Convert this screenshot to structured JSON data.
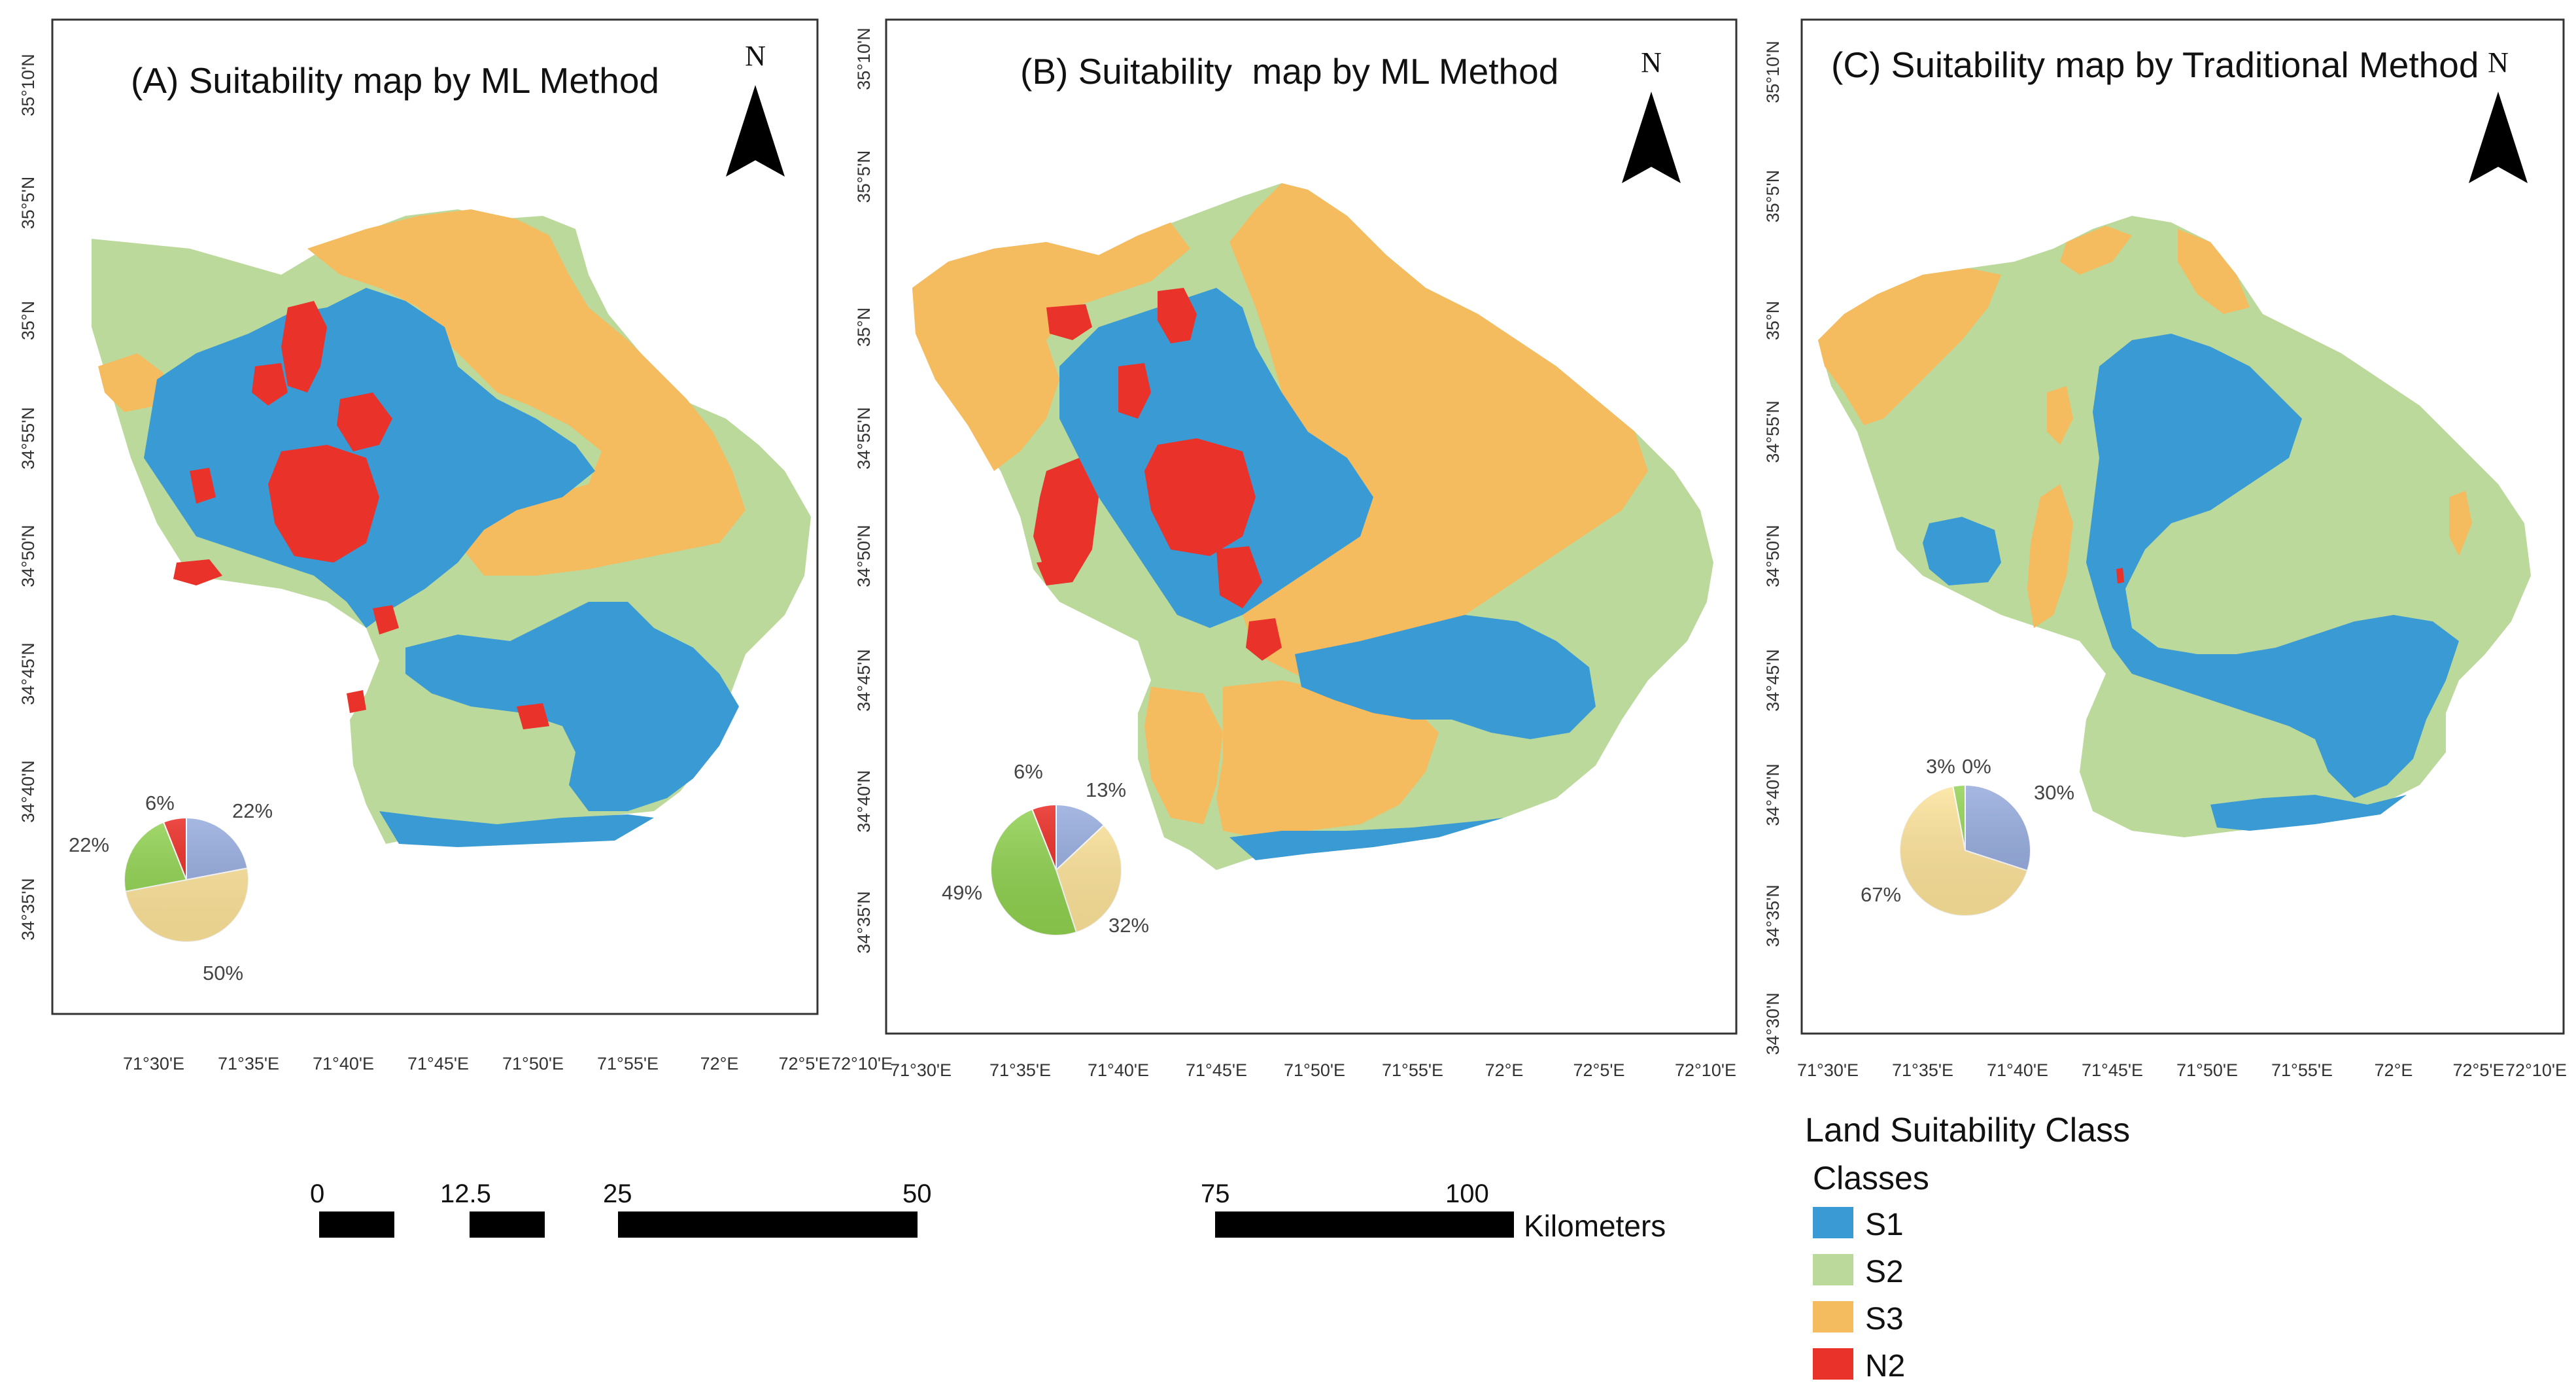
{
  "panels": [
    {
      "title": "(A) Suitability map by ML Method",
      "north": "N",
      "lat_labels": [
        "35°10'N",
        "35°5'N",
        "35°N",
        "34°55'N",
        "34°50'N",
        "34°45'N",
        "34°40'N",
        "34°35'N"
      ],
      "lon_labels": [
        "71°30'E",
        "71°35'E",
        "71°40'E",
        "71°45'E",
        "71°50'E",
        "71°55'E",
        "72°E",
        "72°5'E",
        "72°10'E"
      ],
      "pie": [
        {
          "cls": "S1",
          "pct": 22,
          "label": "22%"
        },
        {
          "cls": "S3",
          "pct": 50,
          "label": "50%"
        },
        {
          "cls": "S2",
          "pct": 22,
          "label": "22%"
        },
        {
          "cls": "N2",
          "pct": 6,
          "label": "6%"
        }
      ]
    },
    {
      "title": "(B) Suitability  map by ML Method",
      "north": "N",
      "lat_labels": [
        "35°10'N",
        "35°5'N",
        "35°N",
        "34°55'N",
        "34°50'N",
        "34°45'N",
        "34°40'N",
        "34°35'N"
      ],
      "lon_labels": [
        "71°30'E",
        "71°35'E",
        "71°40'E",
        "71°45'E",
        "71°50'E",
        "71°55'E",
        "72°E",
        "72°5'E",
        "72°10'E"
      ],
      "pie": [
        {
          "cls": "S1",
          "pct": 13,
          "label": "13%"
        },
        {
          "cls": "S3",
          "pct": 32,
          "label": "32%"
        },
        {
          "cls": "S2",
          "pct": 49,
          "label": "49%"
        },
        {
          "cls": "N2",
          "pct": 6,
          "label": "6%"
        }
      ]
    },
    {
      "title": "(C) Suitability map by Traditional Method",
      "north": "N",
      "lat_labels": [
        "35°10'N",
        "35°5'N",
        "35°N",
        "34°55'N",
        "34°50'N",
        "34°45'N",
        "34°40'N",
        "34°35'N",
        "34°30'N"
      ],
      "lon_labels": [
        "71°30'E",
        "71°35'E",
        "71°40'E",
        "71°45'E",
        "71°50'E",
        "71°55'E",
        "72°E",
        "72°5'E",
        "72°10'E"
      ],
      "pie": [
        {
          "cls": "S1",
          "pct": 30,
          "label": "30%"
        },
        {
          "cls": "S3",
          "pct": 67,
          "label": "67%"
        },
        {
          "cls": "S2",
          "pct": 3,
          "label": "3%"
        },
        {
          "cls": "N2",
          "pct": 0,
          "label": "0%"
        }
      ]
    }
  ],
  "scale_bar": {
    "ticks": [
      "0",
      "12.5",
      "25",
      "50",
      "75",
      "100"
    ],
    "unit": "Kilometers"
  },
  "legend": {
    "title": "Land Suitability Class",
    "subtitle": "Classes",
    "items": [
      {
        "label": "S1",
        "color": "#3a9ad3"
      },
      {
        "label": "S2",
        "color": "#bcd99c"
      },
      {
        "label": "S3",
        "color": "#f4bb5f"
      },
      {
        "label": "N2",
        "color": "#e8322a"
      }
    ]
  },
  "map_colors": {
    "S1": "#3a9ad3",
    "S2": "#bcd99c",
    "S3": "#f4bb5f",
    "N2": "#e8322a"
  },
  "pie_colors": {
    "S1": "#93a9dc",
    "S2": "#8fd14f",
    "S3": "#fde39a",
    "N2": "#e8231c"
  }
}
